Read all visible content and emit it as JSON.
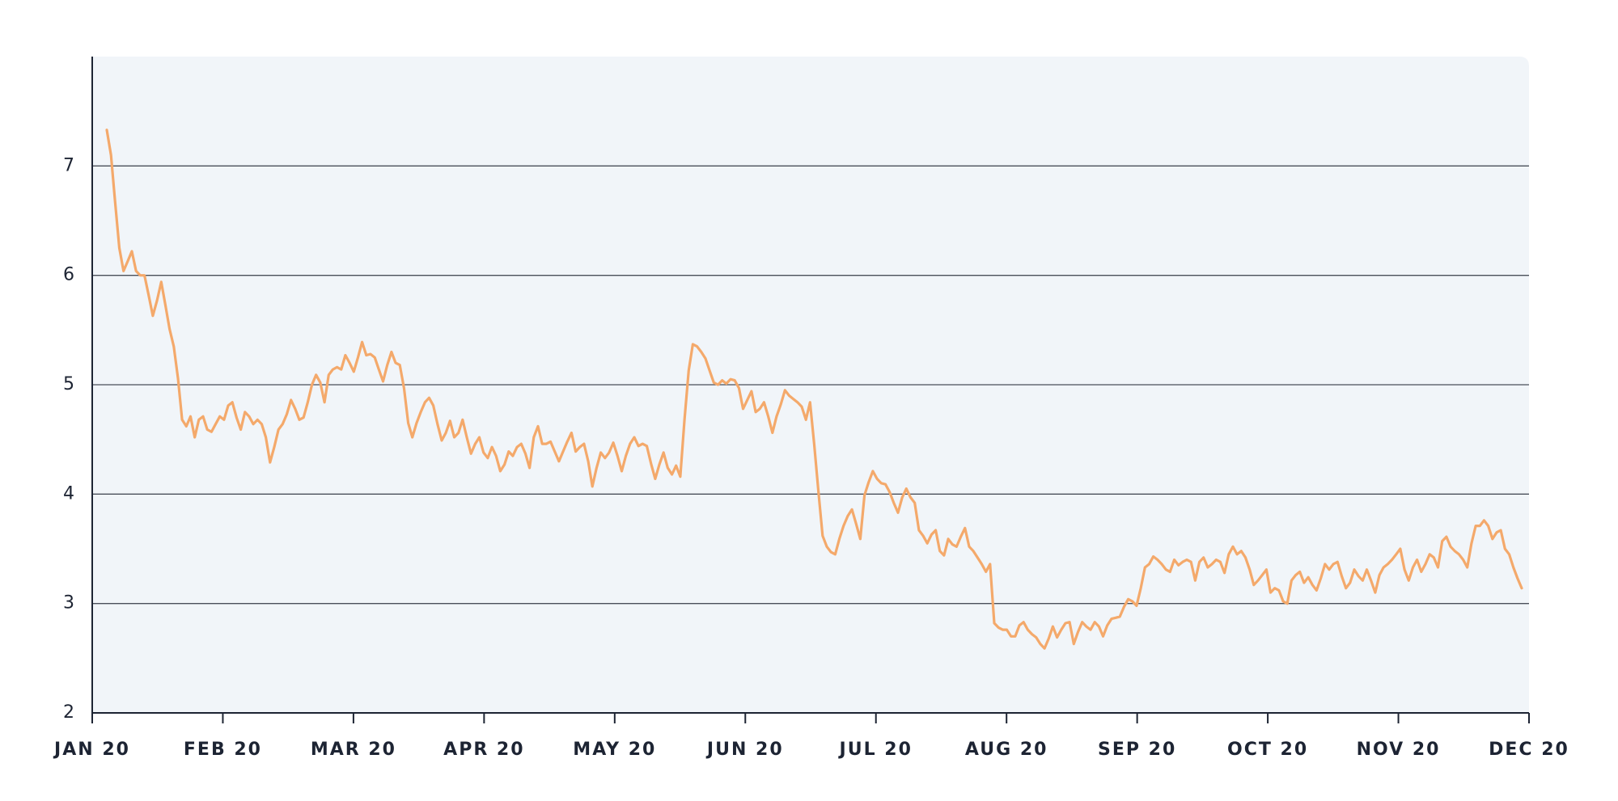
{
  "chart_data": {
    "type": "line",
    "xticks": [
      "JAN 20",
      "FEB 20",
      "MAR 20",
      "APR 20",
      "MAY 20",
      "JUN 20",
      "JUL 20",
      "AUG 20",
      "SEP 20",
      "OCT 20",
      "NOV 20",
      "DEC 20"
    ],
    "ylim": [
      2,
      8
    ],
    "yticks": [
      2,
      3,
      4,
      5,
      6,
      7
    ],
    "grid": true,
    "color": "#f4a96b",
    "values": [
      7.33,
      7.1,
      6.67,
      6.25,
      6.04,
      6.13,
      6.22,
      6.04,
      6.0,
      6.0,
      5.82,
      5.63,
      5.77,
      5.94,
      5.73,
      5.51,
      5.35,
      5.06,
      4.68,
      4.62,
      4.71,
      4.52,
      4.68,
      4.71,
      4.59,
      4.57,
      4.64,
      4.71,
      4.68,
      4.81,
      4.84,
      4.7,
      4.59,
      4.75,
      4.71,
      4.64,
      4.68,
      4.64,
      4.52,
      4.29,
      4.43,
      4.59,
      4.64,
      4.73,
      4.86,
      4.78,
      4.68,
      4.7,
      4.84,
      5.0,
      5.09,
      5.02,
      4.84,
      5.09,
      5.14,
      5.16,
      5.14,
      5.27,
      5.2,
      5.12,
      5.25,
      5.39,
      5.27,
      5.28,
      5.25,
      5.14,
      5.03,
      5.18,
      5.3,
      5.2,
      5.18,
      4.97,
      4.65,
      4.52,
      4.65,
      4.75,
      4.84,
      4.88,
      4.81,
      4.64,
      4.49,
      4.56,
      4.67,
      4.52,
      4.56,
      4.68,
      4.52,
      4.37,
      4.46,
      4.52,
      4.38,
      4.33,
      4.43,
      4.35,
      4.21,
      4.27,
      4.39,
      4.35,
      4.43,
      4.46,
      4.37,
      4.24,
      4.52,
      4.62,
      4.46,
      4.46,
      4.48,
      4.39,
      4.3,
      4.39,
      4.48,
      4.56,
      4.39,
      4.43,
      4.46,
      4.3,
      4.07,
      4.24,
      4.38,
      4.33,
      4.38,
      4.47,
      4.35,
      4.21,
      4.35,
      4.46,
      4.52,
      4.44,
      4.46,
      4.44,
      4.28,
      4.14,
      4.27,
      4.38,
      4.24,
      4.18,
      4.26,
      4.16,
      4.68,
      5.13,
      5.37,
      5.35,
      5.3,
      5.24,
      5.13,
      5.02,
      5.0,
      5.04,
      5.01,
      5.05,
      5.04,
      4.97,
      4.78,
      4.86,
      4.94,
      4.75,
      4.78,
      4.84,
      4.71,
      4.56,
      4.71,
      4.82,
      4.95,
      4.9,
      4.87,
      4.84,
      4.8,
      4.68,
      4.84,
      4.45,
      4.02,
      3.62,
      3.52,
      3.47,
      3.45,
      3.59,
      3.71,
      3.8,
      3.86,
      3.73,
      3.59,
      3.99,
      4.11,
      4.21,
      4.14,
      4.1,
      4.09,
      4.02,
      3.92,
      3.83,
      3.97,
      4.05,
      3.97,
      3.92,
      3.67,
      3.62,
      3.55,
      3.63,
      3.67,
      3.48,
      3.44,
      3.59,
      3.54,
      3.52,
      3.61,
      3.69,
      3.52,
      3.48,
      3.42,
      3.36,
      3.29,
      3.36,
      2.82,
      2.78,
      2.76,
      2.76,
      2.7,
      2.7,
      2.8,
      2.83,
      2.76,
      2.72,
      2.69,
      2.63,
      2.59,
      2.68,
      2.79,
      2.69,
      2.76,
      2.82,
      2.83,
      2.63,
      2.74,
      2.83,
      2.79,
      2.76,
      2.83,
      2.79,
      2.7,
      2.8,
      2.86,
      2.87,
      2.88,
      2.97,
      3.04,
      3.02,
      2.98,
      3.14,
      3.33,
      3.36,
      3.43,
      3.4,
      3.36,
      3.31,
      3.29,
      3.4,
      3.35,
      3.38,
      3.4,
      3.38,
      3.21,
      3.38,
      3.42,
      3.33,
      3.36,
      3.4,
      3.38,
      3.28,
      3.45,
      3.52,
      3.45,
      3.48,
      3.42,
      3.31,
      3.17,
      3.21,
      3.26,
      3.31,
      3.1,
      3.14,
      3.12,
      3.02,
      3.0,
      3.21,
      3.26,
      3.29,
      3.19,
      3.24,
      3.17,
      3.12,
      3.23,
      3.36,
      3.31,
      3.36,
      3.38,
      3.25,
      3.14,
      3.19,
      3.31,
      3.25,
      3.21,
      3.31,
      3.21,
      3.1,
      3.26,
      3.33,
      3.36,
      3.4,
      3.45,
      3.5,
      3.31,
      3.21,
      3.33,
      3.4,
      3.29,
      3.36,
      3.45,
      3.42,
      3.33,
      3.57,
      3.61,
      3.52,
      3.48,
      3.45,
      3.4,
      3.33,
      3.55,
      3.71,
      3.71,
      3.76,
      3.71,
      3.59,
      3.65,
      3.67,
      3.5,
      3.45,
      3.33,
      3.23,
      3.14
    ]
  }
}
